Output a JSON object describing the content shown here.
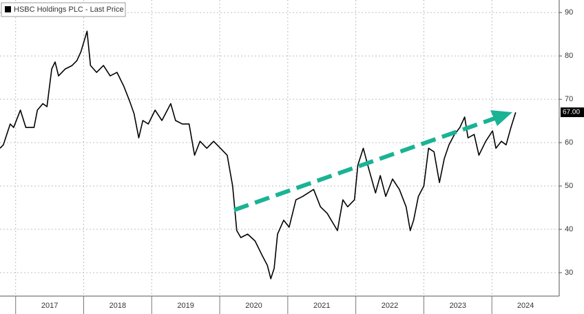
{
  "chart_data": {
    "type": "line",
    "series": [
      {
        "name": "HSBC Holdings PLC - Last Price",
        "color": "#000000",
        "x": [
          2016.77,
          2016.82,
          2016.92,
          2016.97,
          2017.07,
          2017.15,
          2017.27,
          2017.32,
          2017.4,
          2017.46,
          2017.53,
          2017.58,
          2017.63,
          2017.73,
          2017.83,
          2017.9,
          2017.96,
          2018.05,
          2018.1,
          2018.19,
          2018.29,
          2018.39,
          2018.49,
          2018.59,
          2018.67,
          2018.74,
          2018.81,
          2018.87,
          2018.95,
          2019.05,
          2019.15,
          2019.28,
          2019.35,
          2019.45,
          2019.55,
          2019.63,
          2019.71,
          2019.81,
          2019.91,
          2020.01,
          2020.11,
          2020.19,
          2020.25,
          2020.31,
          2020.41,
          2020.52,
          2020.62,
          2020.7,
          2020.75,
          2020.8,
          2020.85,
          2020.94,
          2021.02,
          2021.12,
          2021.22,
          2021.38,
          2021.48,
          2021.58,
          2021.73,
          2021.81,
          2021.88,
          2021.98,
          2022.03,
          2022.11,
          2022.19,
          2022.29,
          2022.36,
          2022.44,
          2022.54,
          2022.64,
          2022.74,
          2022.8,
          2022.85,
          2022.92,
          2023.0,
          2023.07,
          2023.15,
          2023.23,
          2023.3,
          2023.37,
          2023.45,
          2023.53,
          2023.6,
          2023.65,
          2023.74,
          2023.81,
          2023.91,
          2024.01,
          2024.06,
          2024.14,
          2024.21,
          2024.28,
          2024.35
        ],
        "values": [
          58.7,
          59.5,
          64.3,
          63.5,
          67.5,
          63.5,
          63.5,
          67.5,
          69.0,
          68.3,
          77.0,
          78.6,
          75.4,
          77.0,
          77.8,
          78.9,
          81.0,
          85.7,
          77.8,
          76.2,
          77.8,
          75.4,
          76.2,
          73.0,
          69.8,
          66.7,
          61.1,
          65.1,
          64.3,
          67.5,
          65.1,
          69.0,
          65.1,
          64.3,
          64.3,
          57.1,
          60.3,
          58.7,
          60.3,
          58.7,
          57.1,
          50.0,
          39.7,
          38.1,
          38.9,
          37.3,
          34.1,
          31.7,
          28.6,
          31.0,
          38.9,
          42.1,
          40.5,
          46.8,
          47.6,
          49.2,
          45.2,
          43.7,
          39.7,
          46.8,
          45.2,
          46.8,
          54.8,
          58.7,
          54.0,
          48.4,
          52.4,
          47.6,
          51.6,
          49.2,
          45.2,
          39.7,
          42.1,
          47.6,
          50.0,
          58.7,
          57.9,
          50.8,
          56.3,
          59.5,
          61.9,
          63.5,
          65.9,
          61.1,
          61.9,
          57.1,
          60.3,
          62.7,
          58.7,
          60.3,
          59.5,
          63.5,
          67.0
        ]
      }
    ],
    "last_value_label": "67.00",
    "xlim": [
      2016.77,
      2024.99
    ],
    "xticks": [
      2017,
      2018,
      2019,
      2020,
      2021,
      2022,
      2023,
      2024
    ],
    "ylim": [
      24.6,
      92.9
    ],
    "yticks": [
      30,
      40,
      50,
      60,
      70,
      80,
      90
    ],
    "grid": true
  }
}
